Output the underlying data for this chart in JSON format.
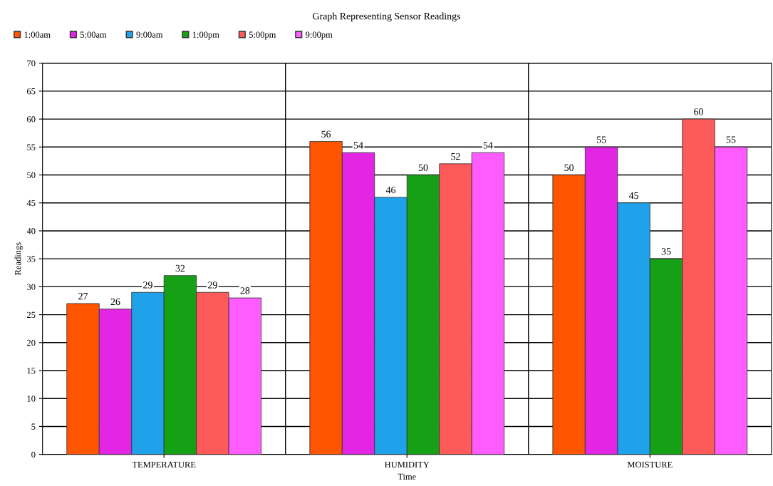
{
  "chart_data": {
    "type": "bar",
    "title": "Graph Representing Sensor Readings",
    "xlabel": "Time",
    "ylabel": "Readings",
    "categories": [
      "TEMPERATURE",
      "HUMIDITY",
      "MOISTURE"
    ],
    "series": [
      {
        "name": "1:00am",
        "color": "#ff5500",
        "values": [
          27,
          56,
          50
        ]
      },
      {
        "name": "5:00am",
        "color": "#e326e3",
        "values": [
          26,
          54,
          55
        ]
      },
      {
        "name": "9:00am",
        "color": "#1fa2ea",
        "values": [
          29,
          46,
          45
        ]
      },
      {
        "name": "1:00pm",
        "color": "#16a016",
        "values": [
          32,
          50,
          35
        ]
      },
      {
        "name": "5:00pm",
        "color": "#ff5a5a",
        "values": [
          29,
          52,
          60
        ]
      },
      {
        "name": "9:00pm",
        "color": "#ff5cff",
        "values": [
          28,
          54,
          55
        ]
      }
    ],
    "ylim": [
      0,
      70
    ],
    "yticks": [
      0,
      5,
      10,
      15,
      20,
      25,
      30,
      35,
      40,
      45,
      50,
      55,
      60,
      65,
      70
    ],
    "grid": true,
    "legend": "top left",
    "data_labels": true
  }
}
